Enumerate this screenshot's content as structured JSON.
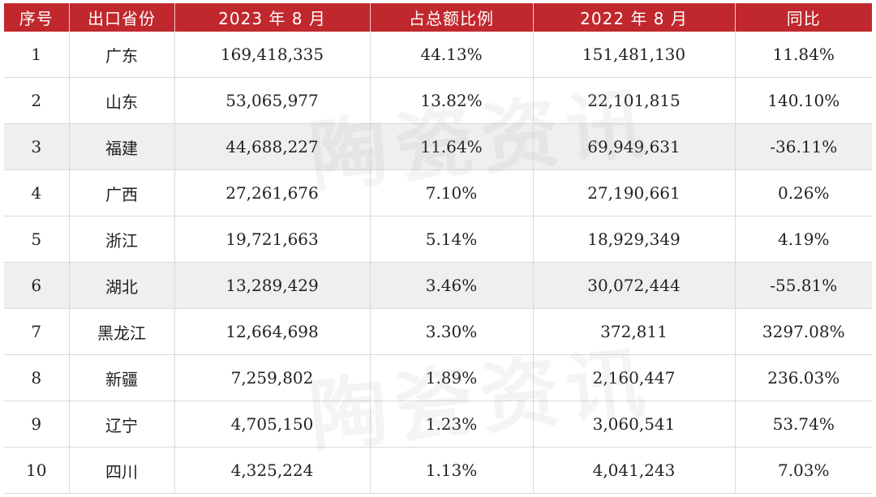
{
  "table": {
    "headers": [
      "序号",
      "出口省份",
      "2023 年 8 月",
      "占总额比例",
      "2022 年 8 月",
      "同比"
    ],
    "rows": [
      [
        "1",
        "广东",
        "169,418,335",
        "44.13%",
        "151,481,130",
        "11.84%"
      ],
      [
        "2",
        "山东",
        "53,065,977",
        "13.82%",
        "22,101,815",
        "140.10%"
      ],
      [
        "3",
        "福建",
        "44,688,227",
        "11.64%",
        "69,949,631",
        "-36.11%"
      ],
      [
        "4",
        "广西",
        "27,261,676",
        "7.10%",
        "27,190,661",
        "0.26%"
      ],
      [
        "5",
        "浙江",
        "19,721,663",
        "5.14%",
        "18,929,349",
        "4.19%"
      ],
      [
        "6",
        "湖北",
        "13,289,429",
        "3.46%",
        "30,072,444",
        "-55.81%"
      ],
      [
        "7",
        "黑龙江",
        "12,664,698",
        "3.30%",
        "372,811",
        "3297.08%"
      ],
      [
        "8",
        "新疆",
        "7,259,802",
        "1.89%",
        "2,160,447",
        "236.03%"
      ],
      [
        "9",
        "辽宁",
        "4,705,150",
        "1.23%",
        "3,060,541",
        "53.74%"
      ],
      [
        "10",
        "四川",
        "4,325,224",
        "1.13%",
        "4,041,243",
        "7.03%"
      ]
    ]
  },
  "watermark": "陶瓷资讯",
  "colors": {
    "header_bg": "#c0282d",
    "header_text": "#ffffff",
    "shaded_row": "#efefef"
  }
}
